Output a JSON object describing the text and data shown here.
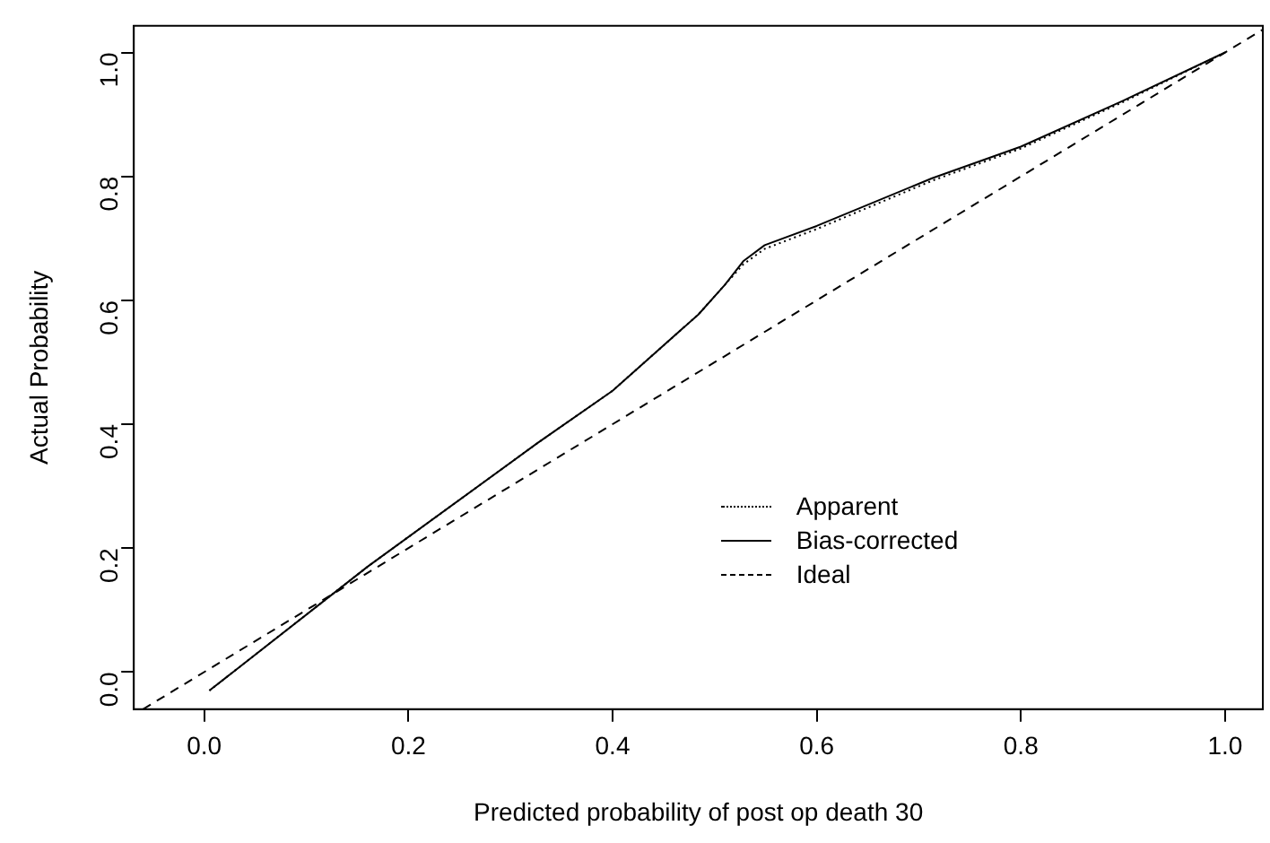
{
  "chart_data": {
    "type": "line",
    "xlabel": "Predicted probability of post op death 30",
    "ylabel": "Actual Probability",
    "xlim": [
      -0.069,
      1.037
    ],
    "ylim": [
      -0.06,
      1.043
    ],
    "xticks": [
      {
        "value": 0,
        "label": "0.0"
      },
      0.2,
      0.4,
      0.6,
      0.8,
      {
        "value": 1,
        "label": "1.0"
      }
    ],
    "yticks": [
      {
        "value": 0,
        "label": "0.0"
      },
      0.2,
      0.4,
      0.6,
      0.8,
      {
        "value": 1,
        "label": "1.0"
      }
    ],
    "grid": false,
    "legend": "bottom right",
    "marker": "none",
    "series": [
      {
        "name": "Apparent",
        "color": "#000000",
        "line_style": "dotted",
        "x": [
          0.005,
          0.16,
          0.326,
          0.4,
          0.484,
          0.51,
          0.528,
          0.549,
          0.6,
          0.713,
          0.8,
          0.9,
          1.0
        ],
        "values": [
          -0.03,
          0.17,
          0.369,
          0.454,
          0.577,
          0.625,
          0.658,
          0.683,
          0.715,
          0.793,
          0.845,
          0.92,
          1.0
        ]
      },
      {
        "name": "Bias-corrected",
        "color": "#000000",
        "line_style": "solid",
        "x": [
          0.005,
          0.16,
          0.326,
          0.4,
          0.484,
          0.51,
          0.528,
          0.549,
          0.6,
          0.713,
          0.8,
          0.9,
          1.0
        ],
        "values": [
          -0.03,
          0.17,
          0.369,
          0.454,
          0.577,
          0.625,
          0.663,
          0.689,
          0.72,
          0.797,
          0.848,
          0.922,
          1.0
        ]
      },
      {
        "name": "Ideal",
        "color": "#000000",
        "line_style": "dashed",
        "x": [
          -0.06,
          1.037
        ],
        "values": [
          -0.06,
          1.037
        ]
      }
    ]
  }
}
